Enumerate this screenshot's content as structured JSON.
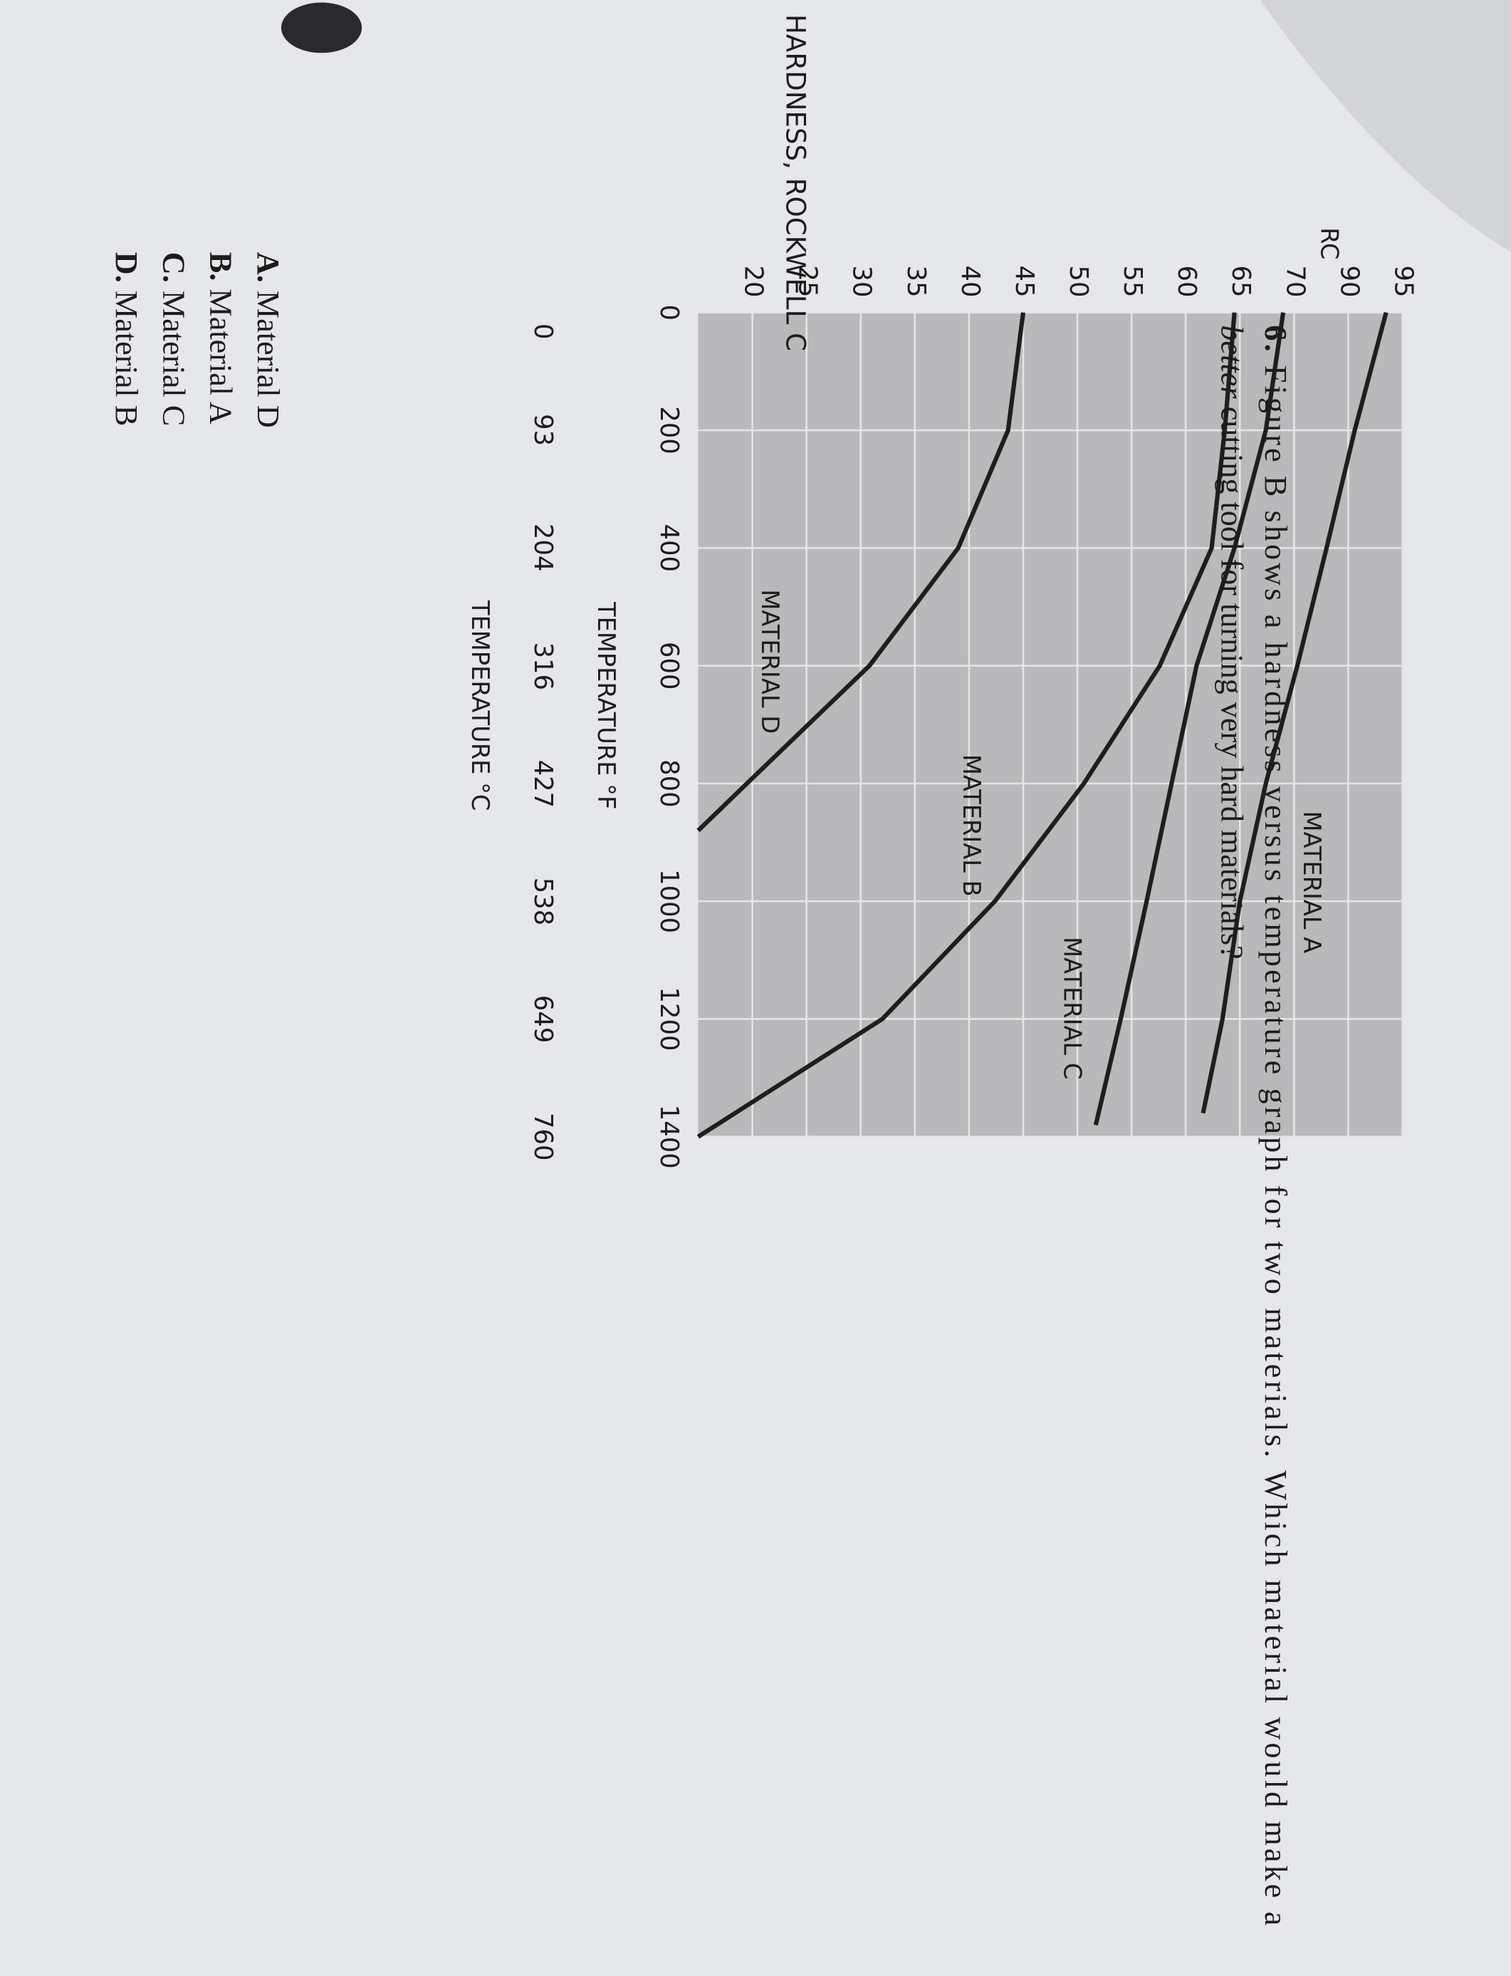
{
  "chart_data": {
    "type": "line",
    "xlabel": "TEMPERATURE °F",
    "x2label": "TEMPERATURE °C",
    "ylabel": "HARDNESS, ROCKWELL C",
    "y2label": "RC",
    "xlim": [
      0,
      1400
    ],
    "xticks": [
      0,
      200,
      400,
      600,
      800,
      1000,
      1200,
      1400
    ],
    "x2lim": [
      -17.8,
      760
    ],
    "x2ticks": [
      0,
      93,
      204,
      316,
      427,
      538,
      649,
      760
    ],
    "ylim": [
      15,
      80
    ],
    "yticks": [
      20,
      25,
      30,
      35,
      40,
      45,
      50,
      55,
      60,
      65,
      70
    ],
    "y2lim": [
      30,
      95
    ],
    "y2ticks": [
      90,
      95
    ],
    "grid": true,
    "series": [
      {
        "name": "MATERIAL A",
        "color": "#1e1e1e",
        "x": [
          0,
          200,
          400,
          600,
          800,
          1000,
          1200,
          1360
        ],
        "values": [
          78.5,
          75.6,
          73,
          70.3,
          67.4,
          65,
          63.4,
          61.6
        ]
      },
      {
        "name": "MATERIAL B",
        "color": "#1e1e1e",
        "x": [
          0,
          200,
          400,
          600,
          800,
          1000,
          1200,
          1400
        ],
        "values": [
          64.5,
          63.6,
          62.4,
          57.6,
          50.6,
          42.4,
          32,
          15
        ]
      },
      {
        "name": "MATERIAL C",
        "color": "#1e1e1e",
        "x": [
          0,
          200,
          400,
          600,
          800,
          1000,
          1200,
          1380
        ],
        "values": [
          69,
          67.4,
          64.5,
          61,
          58.7,
          56.4,
          54,
          51.7
        ]
      },
      {
        "name": "MATERIAL D",
        "color": "#1e1e1e",
        "x": [
          0,
          200,
          400,
          600,
          800,
          880
        ],
        "values": [
          45,
          43.6,
          39,
          30.8,
          19.5,
          15
        ]
      }
    ]
  },
  "question": {
    "number": "6.",
    "line1": "Figure B shows a hardness versus temperature graph for two materials. Which material would make a",
    "emphasis": "better",
    "line2": "cutting tool for turning very hard materials?",
    "options": [
      {
        "letter": "A.",
        "text": "Material D"
      },
      {
        "letter": "B.",
        "text": "Material A"
      },
      {
        "letter": "C.",
        "text": "Material C"
      },
      {
        "letter": "D.",
        "text": "Material B"
      }
    ]
  }
}
